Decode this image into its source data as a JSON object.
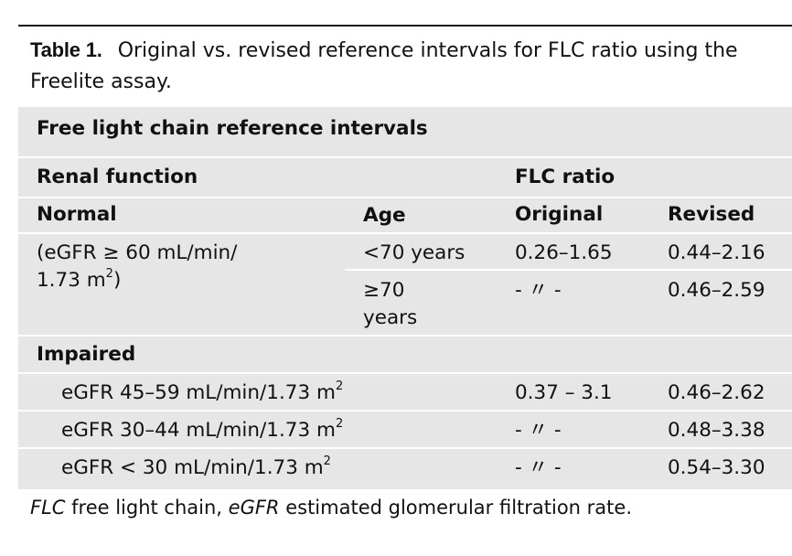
{
  "caption": {
    "label": "Table 1.",
    "text": "Original vs. revised reference intervals for FLC ratio using the Freelite assay."
  },
  "table": {
    "title": "Free light chain reference intervals",
    "header1": {
      "renal_function": "Renal function",
      "flc_ratio": "FLC ratio"
    },
    "header2": {
      "normal": "Normal",
      "age": "Age",
      "original": "Original",
      "revised": "Revised"
    },
    "normal_group": {
      "desc_line1": "(eGFR ≥ 60 mL/min/",
      "desc_line2_pre": "1.73 m",
      "desc_line2_sup": "2",
      "desc_line2_post": ")",
      "rows": [
        {
          "age": "<70 years",
          "original": "0.26–1.65",
          "revised": "0.44–2.16"
        },
        {
          "age_sym": "≥",
          "age_line1": "70",
          "age_line2": "years",
          "original": "- 〃 -",
          "revised": "0.46–2.59"
        }
      ]
    },
    "impaired_label": "Impaired",
    "impaired_rows": [
      {
        "label": "eGFR 45–59 mL/min/1.73 m",
        "sup": "2",
        "original": "0.37 – 3.1",
        "revised": "0.46–2.62"
      },
      {
        "label": "eGFR 30–44 mL/min/1.73 m",
        "sup": "2",
        "original": "- 〃 -",
        "revised": "0.48–3.38"
      },
      {
        "label": "eGFR < 30 mL/min/1.73 m",
        "sup": "2",
        "original": "- 〃 -",
        "revised": "0.54–3.30"
      }
    ]
  },
  "footnote": {
    "abbr1": "FLC",
    "def1": " free light chain, ",
    "abbr2": "eGFR",
    "def2": " estimated glomerular filtration rate."
  }
}
